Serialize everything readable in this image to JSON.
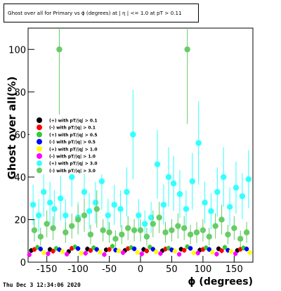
{
  "chart_data": {
    "type": "scatter",
    "title": "Ghost over all for Primary vs ϕ (degrees) at | η | <= 1.0 at pT > 0.11",
    "xlabel": "ϕ (degrees)",
    "ylabel": "Ghost over all(%)",
    "xlim": [
      -180,
      180
    ],
    "ylim": [
      0,
      110
    ],
    "x_ticks": [
      -150,
      -100,
      -50,
      0,
      50,
      100,
      150
    ],
    "y_ticks": [
      0,
      20,
      40,
      60,
      80,
      100
    ],
    "grid": false,
    "legend_position": "mid-left",
    "series": [
      {
        "name": "(+) with pT/|q| > 0.1",
        "color": "#000000",
        "x": [
          -175,
          -145,
          -115,
          -85,
          -55,
          -25,
          5,
          35,
          65,
          95,
          125,
          155
        ],
        "y": [
          5.5,
          6.0,
          5.0,
          6.2,
          5.8,
          5.5,
          6.0,
          5.4,
          6.1,
          5.7,
          6.3,
          5.5
        ]
      },
      {
        "name": "(-) with pT/|q| > 0.1",
        "color": "#ff0000",
        "x": [
          -170,
          -140,
          -110,
          -80,
          -50,
          -20,
          10,
          40,
          70,
          100,
          130,
          160
        ],
        "y": [
          6.0,
          5.2,
          6.5,
          5.5,
          6.0,
          6.4,
          5.3,
          6.2,
          5.6,
          6.0,
          5.4,
          6.1
        ]
      },
      {
        "name": "(+) with pT/|q| > 0.5",
        "color": "#33cc33",
        "x": [
          -165,
          -135,
          -105,
          -75,
          -45,
          -15,
          15,
          45,
          75,
          105,
          135,
          165
        ],
        "y": [
          7.0,
          6.5,
          7.2,
          6.8,
          7.5,
          6.9,
          7.1,
          6.6,
          7.3,
          6.8,
          7.0,
          6.7
        ]
      },
      {
        "name": "(-) with pT/|q| > 0.5",
        "color": "#0000ff",
        "x": [
          -160,
          -130,
          -100,
          -70,
          -40,
          -10,
          20,
          50,
          80,
          110,
          140,
          170
        ],
        "y": [
          6.2,
          5.9,
          6.4,
          6.0,
          5.7,
          6.3,
          6.1,
          5.8,
          6.5,
          6.0,
          5.6,
          6.2
        ]
      },
      {
        "name": "(+) with pT/|q| > 1.0",
        "color": "#ffff00",
        "x": [
          -155,
          -125,
          -95,
          -65,
          -35,
          -5,
          25,
          55,
          85,
          115,
          145,
          175
        ],
        "y": [
          4.5,
          5.0,
          4.2,
          4.8,
          5.3,
          4.6,
          4.9,
          5.2,
          4.4,
          4.7,
          5.1,
          4.5
        ]
      },
      {
        "name": "(-) with pT/|q| > 1.0",
        "color": "#ff00ff",
        "x": [
          -178,
          -148,
          -118,
          -88,
          -58,
          -28,
          2,
          32,
          62,
          92,
          122,
          152
        ],
        "y": [
          3.5,
          4.0,
          3.8,
          4.2,
          3.6,
          4.5,
          3.9,
          4.1,
          3.7,
          4.3,
          3.8,
          4.0
        ]
      },
      {
        "name": "(+) with pT/|q| > 3.0",
        "color": "#33ffff",
        "x": [
          -172,
          -163,
          -155,
          -145,
          -138,
          -128,
          -120,
          -110,
          -100,
          -90,
          -82,
          -72,
          -62,
          -52,
          -42,
          -32,
          -22,
          -12,
          -3,
          7,
          17,
          27,
          37,
          45,
          53,
          63,
          73,
          83,
          93,
          103,
          113,
          123,
          133,
          143,
          153,
          163,
          173
        ],
        "y": [
          27,
          22,
          33,
          28,
          25,
          30,
          22,
          40,
          21,
          33,
          24,
          28,
          38,
          22,
          27,
          25,
          33,
          60,
          22,
          18,
          21,
          46,
          27,
          40,
          37,
          32,
          25,
          38,
          56,
          28,
          24,
          33,
          40,
          26,
          35,
          31,
          39
        ]
      },
      {
        "name": "(-) with pT/|q| > 3.0",
        "color": "#66cc66",
        "x": [
          -170,
          -160,
          -150,
          -140,
          -130,
          -120,
          -110,
          -100,
          -90,
          -80,
          -70,
          -60,
          -50,
          -40,
          -30,
          -20,
          -10,
          0,
          10,
          20,
          30,
          40,
          50,
          60,
          70,
          75,
          80,
          90,
          100,
          110,
          120,
          130,
          140,
          150,
          160,
          170
        ],
        "y": [
          15,
          12,
          18,
          16,
          100,
          14,
          17,
          20,
          22,
          13,
          25,
          15,
          14,
          11,
          13,
          16,
          15,
          15,
          12,
          18,
          21,
          14,
          15,
          17,
          16,
          100,
          13,
          14,
          15,
          12,
          17,
          20,
          13,
          16,
          11,
          14
        ]
      }
    ]
  },
  "footer": {
    "timestamp": "Thu Dec  3 12:34:06 2020"
  }
}
